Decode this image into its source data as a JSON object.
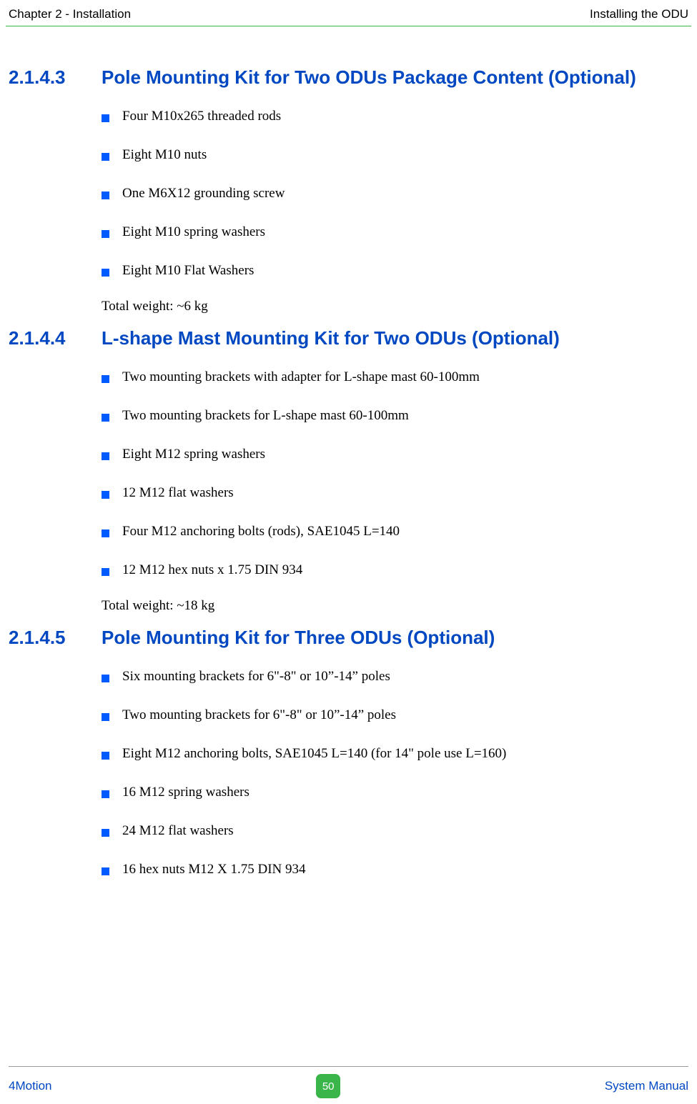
{
  "header": {
    "left": "Chapter 2 - Installation",
    "right": "Installing the ODU"
  },
  "sections": {
    "s1": {
      "num": "2.1.4.3",
      "title": "Pole Mounting Kit for Two ODUs Package Content (Optional)",
      "items": [
        "Four M10x265 threaded rods",
        "Eight M10 nuts",
        "One M6X12 grounding screw",
        "Eight M10 spring washers",
        "Eight M10 Flat Washers"
      ],
      "total": "Total weight: ~6 kg"
    },
    "s2": {
      "num": "2.1.4.4",
      "title": "L-shape Mast Mounting Kit for Two ODUs (Optional)",
      "items": [
        "Two mounting brackets with adapter for L-shape mast 60-100mm",
        "Two mounting brackets for L-shape mast 60-100mm",
        "Eight M12 spring washers",
        "12 M12 flat washers",
        "Four M12 anchoring bolts (rods), SAE1045 L=140",
        "12 M12 hex nuts x 1.75 DIN 934"
      ],
      "total": "Total weight: ~18 kg"
    },
    "s3": {
      "num": "2.1.4.5",
      "title": "Pole Mounting Kit for Three ODUs (Optional)",
      "items": [
        "Six mounting brackets for 6\"-8\" or 10”-14” poles",
        "Two mounting brackets for 6\"-8\" or 10”-14” poles",
        "Eight M12 anchoring bolts, SAE1045 L=140 (for 14\" pole use L=160)",
        "16 M12 spring washers",
        "24 M12 flat washers",
        "16 hex nuts M12 X 1.75 DIN 934"
      ]
    }
  },
  "footer": {
    "left": "4Motion",
    "page": "50",
    "right": "System Manual"
  },
  "colors": {
    "heading_blue": "#0047c2",
    "bullet_blue": "#005bff",
    "rule_green": "#39b54a",
    "footer_text": "#0047c2",
    "page_badge_bg": "#39b54a",
    "page_badge_text": "#ffffff"
  }
}
